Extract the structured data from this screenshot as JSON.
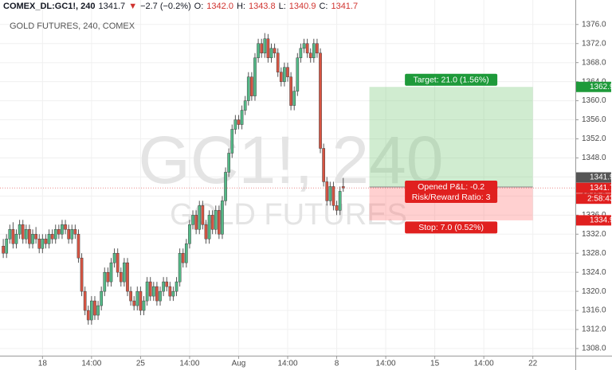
{
  "header": {
    "symbol": "COMEX_DL:GC1!, 240",
    "last": "1341.7",
    "arrow": "▼",
    "change": "−2.7 (−0.2%)",
    "ohlc": [
      {
        "label": "O:",
        "value": "1342.0"
      },
      {
        "label": "H:",
        "value": "1343.8"
      },
      {
        "label": "L:",
        "value": "1340.9"
      },
      {
        "label": "C:",
        "value": "1341.7"
      }
    ]
  },
  "chart_data": {
    "type": "candlestick",
    "title": "GOLD FUTURES, 240, COMEX",
    "watermark": [
      "GC1!, 240",
      "GOLD FUTURES"
    ],
    "up_color": "#53b987",
    "down_color": "#d75442",
    "grid": true,
    "xlim": [
      -1,
      175
    ],
    "xticks": [
      {
        "value": 12,
        "label": "18"
      },
      {
        "value": 27,
        "label": "14:00"
      },
      {
        "value": 42,
        "label": "25"
      },
      {
        "value": 57,
        "label": "14:00"
      },
      {
        "value": 72,
        "label": "Aug"
      },
      {
        "value": 87,
        "label": "14:00"
      },
      {
        "value": 102,
        "label": "8"
      },
      {
        "value": 117,
        "label": "14:00"
      },
      {
        "value": 132,
        "label": "15"
      },
      {
        "value": 147,
        "label": "14:00"
      },
      {
        "value": 162,
        "label": "22"
      }
    ],
    "ylim": [
      1306.5,
      1377.8
    ],
    "yticks": [
      {
        "value": 1308,
        "label": "1308.0"
      },
      {
        "value": 1312,
        "label": "1312.0"
      },
      {
        "value": 1316,
        "label": "1316.0"
      },
      {
        "value": 1320,
        "label": "1320.0"
      },
      {
        "value": 1324,
        "label": "1324.0"
      },
      {
        "value": 1328,
        "label": "1328.0"
      },
      {
        "value": 1332,
        "label": "1332.0"
      },
      {
        "value": 1336,
        "label": "1336.0"
      },
      {
        "value": 1340,
        "label": "1340.0"
      },
      {
        "value": 1344,
        "label": "1344.0"
      },
      {
        "value": 1348,
        "label": "1348.0"
      },
      {
        "value": 1352,
        "label": "1352.0"
      },
      {
        "value": 1356,
        "label": "1356.0"
      },
      {
        "value": 1360,
        "label": "1360.0"
      },
      {
        "value": 1364,
        "label": "1364.0"
      },
      {
        "value": 1368,
        "label": "1368.0"
      },
      {
        "value": 1372,
        "label": "1372.0"
      },
      {
        "value": 1376,
        "label": "1376.0"
      }
    ],
    "open": [
      1329.5,
      1328,
      1331,
      1333,
      1330,
      1332,
      1334,
      1331,
      1333,
      1330,
      1332,
      1331,
      1329,
      1331,
      1330,
      1332,
      1331,
      1333,
      1332,
      1334,
      1333,
      1331,
      1333,
      1332,
      1327,
      1320,
      1316,
      1314,
      1318,
      1315,
      1317,
      1320,
      1324,
      1322,
      1326,
      1328,
      1324,
      1322,
      1326,
      1320,
      1318,
      1317,
      1320,
      1316,
      1318,
      1322,
      1319,
      1321,
      1318,
      1320,
      1322,
      1321,
      1319,
      1320,
      1322,
      1328,
      1326,
      1330,
      1334,
      1336,
      1333,
      1338,
      1334,
      1331,
      1336,
      1333,
      1337,
      1332,
      1339,
      1345,
      1349,
      1354,
      1356,
      1355,
      1358,
      1360,
      1365,
      1361,
      1369,
      1372,
      1370,
      1373,
      1369,
      1371,
      1370,
      1366,
      1364,
      1367,
      1365,
      1359,
      1362,
      1369,
      1371,
      1372,
      1370,
      1369,
      1372,
      1370,
      1350,
      1343,
      1339,
      1342,
      1338,
      1337,
      1342
    ],
    "high": [
      1331,
      1332,
      1334,
      1334.5,
      1333,
      1335,
      1335,
      1334,
      1334,
      1333,
      1333.5,
      1332,
      1332,
      1332,
      1333,
      1333,
      1334,
      1334,
      1335,
      1335,
      1334,
      1334,
      1334,
      1333,
      1328,
      1321,
      1317,
      1319,
      1319,
      1318,
      1321,
      1325,
      1325,
      1327,
      1329,
      1329,
      1325,
      1327,
      1327,
      1321,
      1319,
      1321,
      1321,
      1319,
      1323,
      1323,
      1322,
      1322,
      1321,
      1323,
      1323,
      1322,
      1321,
      1323,
      1329,
      1329,
      1331,
      1335,
      1337,
      1337,
      1339,
      1339,
      1335,
      1337,
      1337,
      1338,
      1338,
      1340,
      1346,
      1350,
      1355,
      1357,
      1357,
      1359,
      1361,
      1366,
      1366,
      1370,
      1373,
      1373,
      1374.2,
      1374,
      1372,
      1372,
      1371,
      1367,
      1368,
      1368,
      1366,
      1363,
      1370,
      1372,
      1373,
      1373,
      1371,
      1373,
      1373,
      1371,
      1351,
      1344,
      1343,
      1343,
      1339,
      1342,
      1343.8
    ],
    "low": [
      1327,
      1327,
      1330,
      1329,
      1329,
      1331,
      1330,
      1330,
      1329,
      1329,
      1330,
      1328,
      1328,
      1329,
      1329,
      1330,
      1330,
      1331,
      1331,
      1332,
      1330,
      1330,
      1331,
      1326,
      1319,
      1315,
      1313,
      1313,
      1314,
      1314,
      1316,
      1319,
      1321,
      1321,
      1325,
      1323,
      1321,
      1321,
      1319,
      1317,
      1316,
      1316,
      1315,
      1315,
      1317,
      1318,
      1318,
      1317,
      1317,
      1319,
      1320,
      1318,
      1318,
      1319,
      1321,
      1325,
      1325,
      1329,
      1333,
      1332,
      1332,
      1333,
      1330,
      1330,
      1332,
      1332,
      1331,
      1331,
      1338,
      1344,
      1348,
      1353,
      1354,
      1354,
      1357,
      1359,
      1360,
      1360,
      1368,
      1369,
      1369,
      1368,
      1368,
      1369,
      1365,
      1363,
      1363,
      1364,
      1358,
      1358,
      1361,
      1368,
      1370,
      1369,
      1368,
      1368,
      1369,
      1349,
      1342,
      1338,
      1338,
      1337,
      1336,
      1336,
      1340.9
    ],
    "close": [
      1328,
      1331,
      1333,
      1330,
      1332,
      1334,
      1331,
      1333,
      1330,
      1332,
      1331,
      1329,
      1331,
      1330,
      1332,
      1331,
      1333,
      1332,
      1334,
      1333,
      1331,
      1333,
      1332,
      1327,
      1320,
      1316,
      1314,
      1318,
      1315,
      1317,
      1320,
      1324,
      1322,
      1326,
      1328,
      1324,
      1322,
      1326,
      1320,
      1318,
      1317,
      1320,
      1316,
      1318,
      1322,
      1319,
      1321,
      1318,
      1320,
      1322,
      1321,
      1319,
      1320,
      1322,
      1328,
      1326,
      1330,
      1334,
      1336,
      1333,
      1338,
      1334,
      1331,
      1336,
      1333,
      1337,
      1332,
      1339,
      1345,
      1349,
      1354,
      1356,
      1355,
      1358,
      1360,
      1365,
      1361,
      1369,
      1372,
      1370,
      1373,
      1369,
      1371,
      1370,
      1366,
      1364,
      1367,
      1365,
      1359,
      1362,
      1369,
      1371,
      1372,
      1370,
      1369,
      1372,
      1370,
      1350,
      1343,
      1339,
      1342,
      1338,
      1337,
      1341,
      1341.7
    ],
    "countdown": "2:58:43",
    "position": {
      "x_range": [
        112,
        162
      ],
      "entry_price": 1341.9,
      "target_price": 1362.9,
      "stop_price": 1334.9,
      "target_label": "Target: 21.0 (1.56%)",
      "pl_label": "Opened P&L: -0.2",
      "rr_label": "Risk/Reward Ratio: 3",
      "stop_label": "Stop: 7.0 (0.52%)"
    }
  }
}
